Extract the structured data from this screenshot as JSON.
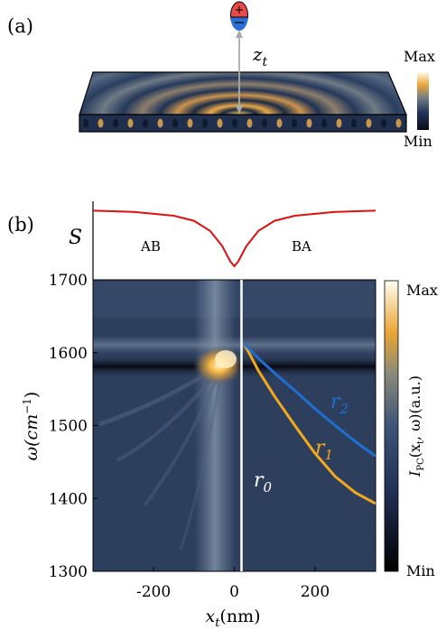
{
  "panel_a": {
    "label": "(a)",
    "probe_label_main": "z",
    "probe_label_sub": "t",
    "colorbar_max": "Max",
    "colorbar_min": "Min",
    "colors": {
      "ring_light": "#f2b84e",
      "ring_dark": "#1a2a45",
      "slab_bg": "#3c5478",
      "probe_top": "#e84a4a",
      "probe_bottom": "#2a6fd6"
    }
  },
  "panel_b": {
    "label": "(b)",
    "s_label": "S",
    "region_left": "AB",
    "region_right": "BA",
    "colorbar_max": "Max",
    "colorbar_min": "Min",
    "colorbar_label": "I_PC(x_t, ω)(a.u.)",
    "colorbar_label_parts": {
      "i": "I",
      "sub": "PC",
      "args": "(x",
      "args_sub": "t",
      "rest": ", ω)(a.u.)"
    },
    "curve_labels": {
      "r0": {
        "main": "r",
        "sub": "0",
        "color": "#ffffff"
      },
      "r1": {
        "main": "r",
        "sub": "1",
        "color": "#f2a91c"
      },
      "r2": {
        "main": "r",
        "sub": "2",
        "color": "#1f6fd1"
      }
    },
    "colors": {
      "s_curve": "#e01010",
      "map_bg": "#2e3f5e",
      "vertical_line": "#ffffff"
    }
  },
  "chart_data": {
    "type": "heatmap",
    "xlabel": "x_t(nm)",
    "xlabel_parts": {
      "main": "x",
      "sub": "t",
      "rest": "(nm)"
    },
    "ylabel": "ω(cm⁻¹)",
    "ylabel_parts": {
      "main": "ω(cm",
      "sup": "−1",
      "rest": ")"
    },
    "xlim": [
      -350,
      350
    ],
    "ylim": [
      1300,
      1700
    ],
    "x_ticks": [
      -200,
      0,
      200
    ],
    "y_ticks": [
      1300,
      1400,
      1500,
      1600,
      1700
    ],
    "series": [
      {
        "name": "r_0",
        "x": [
          18,
          18
        ],
        "y": [
          1300,
          1700
        ]
      },
      {
        "name": "r_1",
        "x": [
          25,
          60,
          100,
          150,
          200,
          250,
          300,
          350
        ],
        "y": [
          1612,
          1575,
          1540,
          1500,
          1462,
          1430,
          1408,
          1393
        ]
      },
      {
        "name": "r_2",
        "x": [
          25,
          60,
          100,
          150,
          200,
          250,
          300,
          350
        ],
        "y": [
          1612,
          1592,
          1572,
          1548,
          1523,
          1500,
          1478,
          1458
        ]
      }
    ],
    "S_curve": {
      "x": [
        -350,
        -250,
        -150,
        -100,
        -60,
        -30,
        -10,
        0,
        10,
        30,
        60,
        100,
        150,
        250,
        350
      ],
      "y": [
        0.98,
        0.96,
        0.9,
        0.82,
        0.66,
        0.42,
        0.18,
        0.1,
        0.18,
        0.42,
        0.66,
        0.82,
        0.9,
        0.96,
        0.98
      ]
    }
  }
}
